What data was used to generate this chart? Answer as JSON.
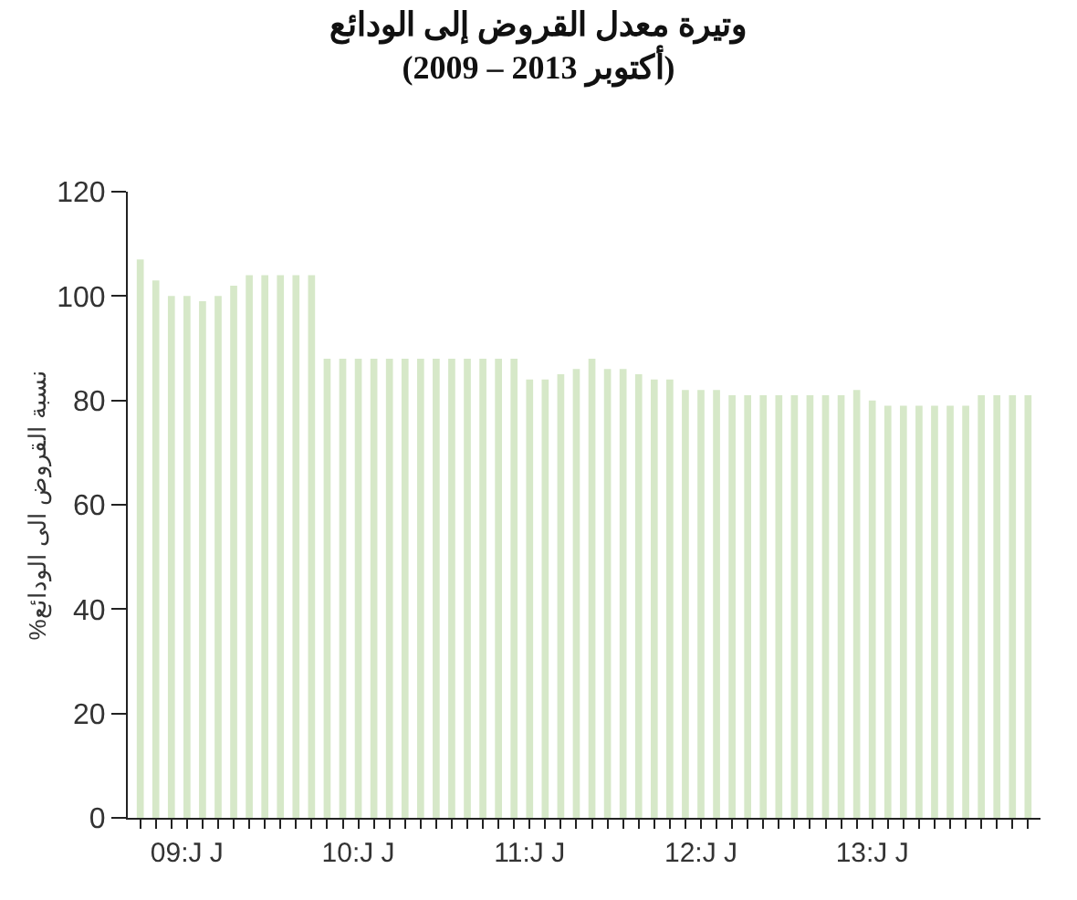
{
  "chart_data": {
    "type": "bar",
    "title": "وتيرة معدل القروض إلى الودائع",
    "subtitle": "(2009 – أكتوبر 2013)",
    "ylabel": "%نسبة القروض الى الودائع",
    "categories": [
      null,
      null,
      null,
      "09:J J",
      null,
      null,
      null,
      null,
      null,
      null,
      null,
      null,
      null,
      null,
      "10:J J",
      null,
      null,
      null,
      null,
      null,
      null,
      null,
      null,
      null,
      null,
      "11:J J",
      null,
      null,
      null,
      null,
      null,
      null,
      null,
      null,
      null,
      null,
      "12:J J",
      null,
      null,
      null,
      null,
      null,
      null,
      null,
      null,
      null,
      null,
      "13:J J",
      null,
      null,
      null,
      null,
      null,
      null,
      null,
      null,
      null,
      null
    ],
    "values": [
      107,
      103,
      100,
      100,
      99,
      100,
      102,
      104,
      104,
      104,
      104,
      104,
      88,
      88,
      88,
      88,
      88,
      88,
      88,
      88,
      88,
      88,
      88,
      88,
      88,
      84,
      84,
      85,
      86,
      88,
      86,
      86,
      85,
      84,
      84,
      82,
      82,
      82,
      81,
      81,
      81,
      81,
      81,
      81,
      81,
      81,
      82,
      80,
      79,
      79,
      79,
      79,
      79,
      79,
      81,
      81,
      81,
      81
    ],
    "color": "#d6e8c8",
    "ylim": [
      0,
      120
    ],
    "yticks": [
      0,
      20,
      40,
      60,
      80,
      100,
      120
    ]
  }
}
